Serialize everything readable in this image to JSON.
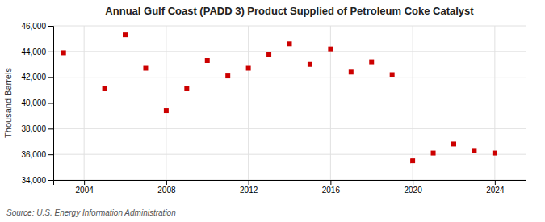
{
  "chart_data": {
    "type": "scatter",
    "title": "Annual Gulf Coast (PADD 3) Product Supplied of Petroleum Coke Catalyst",
    "ylabel": "Thousand Barrels",
    "annotations": [
      "Source: U.S. Energy Information Administration"
    ],
    "x": [
      2003,
      2005,
      2006,
      2007,
      2008,
      2009,
      2010,
      2011,
      2012,
      2013,
      2014,
      2015,
      2016,
      2017,
      2018,
      2019,
      2020,
      2021,
      2022,
      2023,
      2024
    ],
    "values": [
      43900,
      41100,
      45300,
      42700,
      39400,
      41100,
      43300,
      42100,
      42700,
      43800,
      44600,
      43000,
      44200,
      42400,
      43200,
      42200,
      35500,
      36100,
      36800,
      36300,
      36100
    ],
    "color": "#cc0000",
    "marker": "square",
    "xlim": [
      2002.5,
      2025.5
    ],
    "xticks": [
      2004,
      2008,
      2012,
      2016,
      2020,
      2024
    ],
    "ylim": [
      34000,
      46000
    ],
    "yticks": [
      {
        "value": 34000,
        "label": "34,000"
      },
      {
        "value": 36000,
        "label": "36,000"
      },
      {
        "value": 38000,
        "label": "38,000"
      },
      {
        "value": 40000,
        "label": "40,000"
      },
      {
        "value": 42000,
        "label": "42,000"
      },
      {
        "value": 44000,
        "label": "44,000"
      },
      {
        "value": 46000,
        "label": "46,000"
      }
    ],
    "grid": true
  }
}
